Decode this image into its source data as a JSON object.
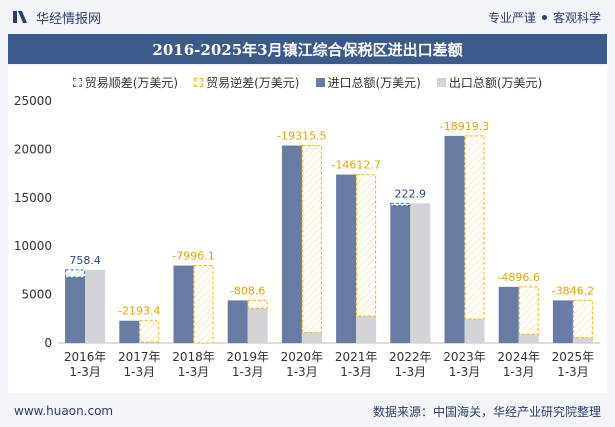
{
  "header": {
    "brand": "华经情报网",
    "tag1": "专业严谨",
    "tag2": "客观科学"
  },
  "footer": {
    "url": "www.huaon.com",
    "source": "数据来源：中国海关，华经产业研究院整理"
  },
  "colors": {
    "import": "#687ca3",
    "export": "#d3d3d8",
    "surplus": "#4a6fa5",
    "deficit": "#f5b800",
    "title_bg": "#3d5a8c"
  },
  "chart_data": {
    "type": "bar",
    "title": "2016-2025年3月镇江综合保税区进出口差额",
    "categories": [
      "2016年\n1-3月",
      "2017年\n1-3月",
      "2018年\n1-3月",
      "2019年\n1-3月",
      "2020年\n1-3月",
      "2021年\n1-3月",
      "2022年\n1-3月",
      "2023年\n1-3月",
      "2024年\n1-3月",
      "2025年\n1-3月"
    ],
    "series": [
      {
        "name": "进口总额(万美元)",
        "values": [
          6800,
          2300,
          8000,
          4400,
          20400,
          17400,
          14200,
          21400,
          5800,
          4400
        ]
      },
      {
        "name": "出口总额(万美元)",
        "values": [
          7558,
          107,
          4,
          3591,
          1084,
          2787,
          14423,
          2481,
          903,
          554
        ]
      }
    ],
    "balance": {
      "values": [
        758.4,
        -2193.4,
        -7996.1,
        -808.6,
        -19315.5,
        -14612.7,
        222.9,
        -18919.3,
        -4896.6,
        -3846.2
      ],
      "labels": [
        "758.4",
        "-2193.4",
        "-7996.1",
        "-808.6",
        "-19315.5",
        "-14612.7",
        "222.9",
        "-18919.3",
        "-4896.6",
        "-3846.2"
      ]
    },
    "legend": [
      "贸易顺差(万美元)",
      "贸易逆差(万美元)",
      "进口总额(万美元)",
      "出口总额(万美元)"
    ],
    "y_ticks": [
      "0",
      "5000",
      "10000",
      "15000",
      "20000",
      "25000"
    ],
    "ylim": [
      0,
      25000
    ],
    "xlabel": "",
    "ylabel": ""
  }
}
